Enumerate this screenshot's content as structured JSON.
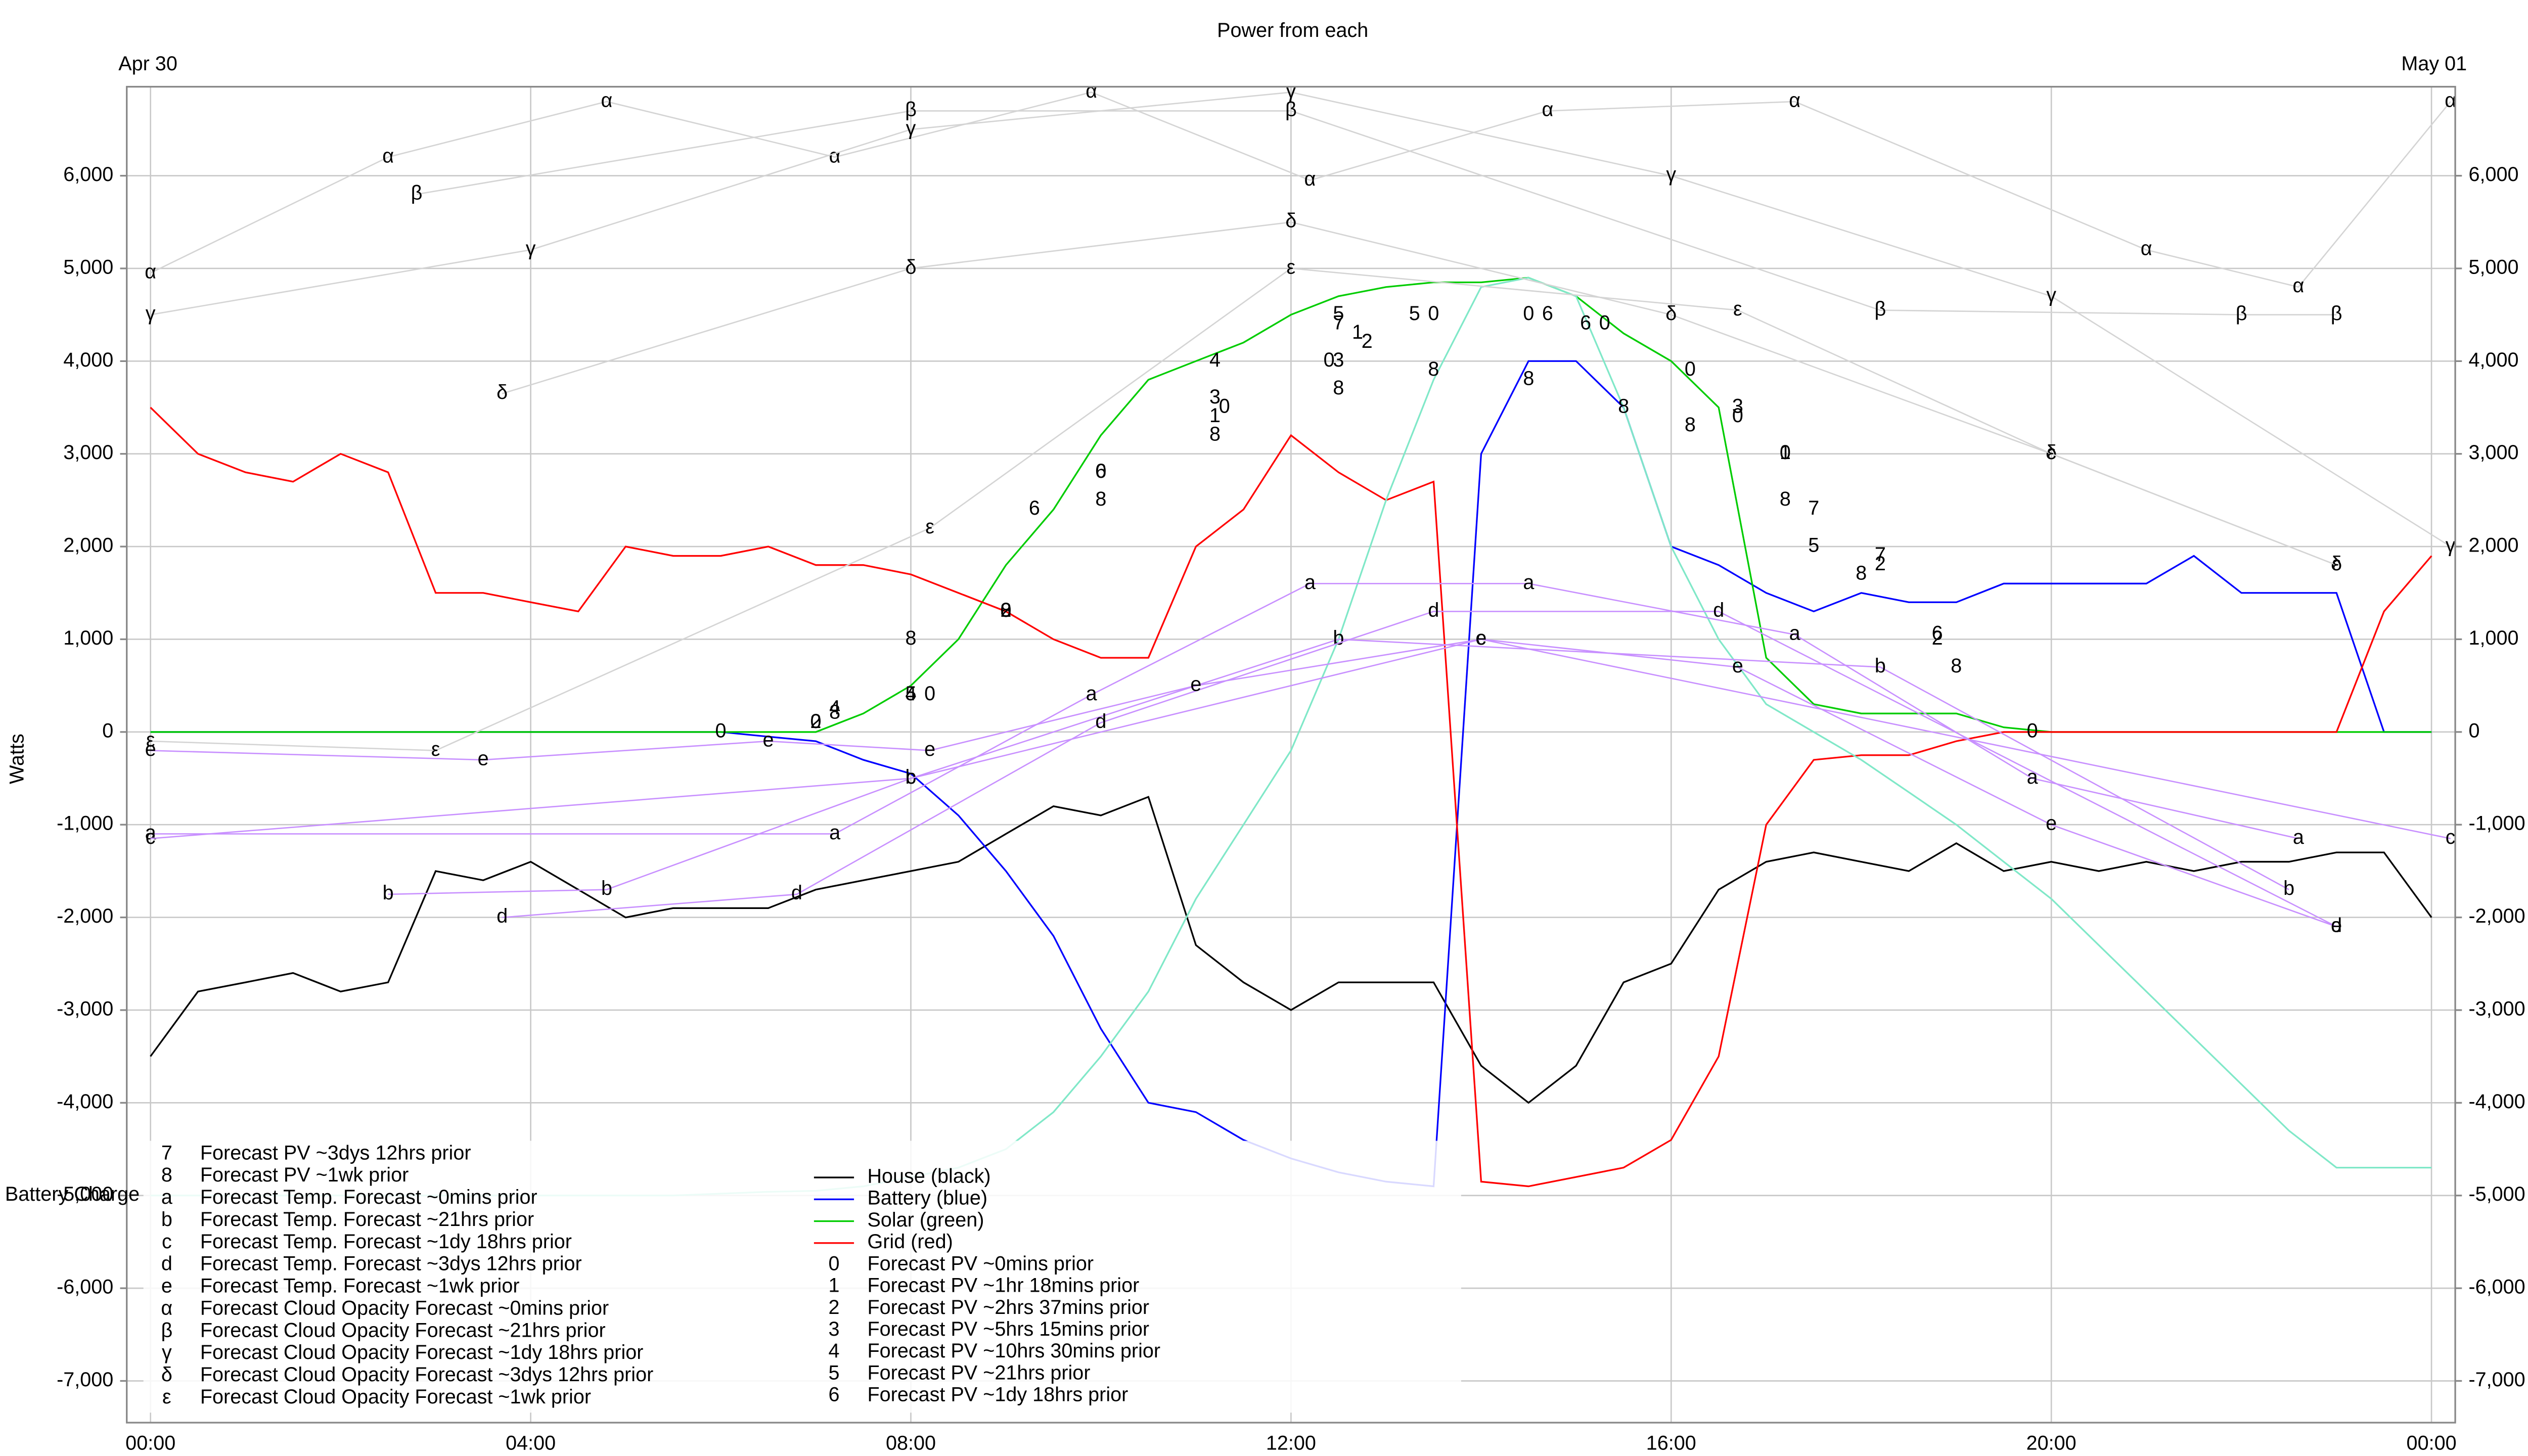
{
  "chart_data": {
    "type": "line",
    "title": "Power from each",
    "y_label": "Watts",
    "date_labels": [
      "Apr 30",
      "May 01"
    ],
    "grid": true,
    "xlim": [
      -0.25,
      24.25
    ],
    "ylim": [
      -7450,
      6960
    ],
    "xticks": [
      {
        "value": 0,
        "label": "00:00"
      },
      {
        "value": 4,
        "label": "04:00"
      },
      {
        "value": 8,
        "label": "08:00"
      },
      {
        "value": 12,
        "label": "12:00"
      },
      {
        "value": 16,
        "label": "16:00"
      },
      {
        "value": 20,
        "label": "20:00"
      },
      {
        "value": 24,
        "label": "00:00"
      }
    ],
    "yticks": [
      {
        "value": -7000,
        "label": "-7,000"
      },
      {
        "value": -6000,
        "label": "-6,000"
      },
      {
        "value": -5000,
        "label": "-5,000"
      },
      {
        "value": -4000,
        "label": "-4,000"
      },
      {
        "value": -3000,
        "label": "-3,000"
      },
      {
        "value": -2000,
        "label": "-2,000"
      },
      {
        "value": -1000,
        "label": "-1,000"
      },
      0,
      {
        "value": 1000,
        "label": "1,000"
      },
      {
        "value": 2000,
        "label": "2,000"
      },
      {
        "value": 3000,
        "label": "3,000"
      },
      {
        "value": 4000,
        "label": "4,000"
      },
      {
        "value": 5000,
        "label": "5,000"
      },
      {
        "value": 6000,
        "label": "6,000"
      }
    ],
    "x": [
      0,
      0.5,
      1,
      1.5,
      2,
      2.5,
      3,
      3.5,
      4,
      4.5,
      5,
      5.5,
      6,
      6.5,
      7,
      7.5,
      8,
      8.5,
      9,
      9.5,
      10,
      10.5,
      11,
      11.5,
      12,
      12.5,
      13,
      13.5,
      14,
      14.5,
      15,
      15.5,
      16,
      16.5,
      17,
      17.5,
      18,
      18.5,
      19,
      19.5,
      20,
      20.5,
      21,
      21.5,
      22,
      22.5,
      23,
      23.5,
      24
    ],
    "series": [
      {
        "name": "House (black)",
        "color": "#000000",
        "values": [
          -3500,
          -2800,
          -2700,
          -2600,
          -2800,
          -2700,
          -1500,
          -1600,
          -1400,
          -1700,
          -2000,
          -1900,
          -1900,
          -1900,
          -1700,
          -1600,
          -1500,
          -1400,
          -1100,
          -800,
          -900,
          -700,
          -2300,
          -2700,
          -3000,
          -2700,
          -2700,
          -2700,
          -3600,
          -4000,
          -3600,
          -2700,
          -2500,
          -1700,
          -1400,
          -1300,
          -1400,
          -1500,
          -1200,
          -1500,
          -1400,
          -1500,
          -1400,
          -1500,
          -1400,
          -1400,
          -1300,
          -1300,
          -2000
        ]
      },
      {
        "name": "Battery (blue)",
        "color": "#0000ff",
        "values": [
          0,
          0,
          0,
          0,
          0,
          0,
          0,
          0,
          0,
          0,
          0,
          0,
          0,
          -50,
          -100,
          -300,
          -450,
          -900,
          -1500,
          -2200,
          -3200,
          -4000,
          -4100,
          -4400,
          -4600,
          -4750,
          -4850,
          -4900,
          3000,
          4000,
          4000,
          3500,
          2000,
          1800,
          1500,
          1300,
          1500,
          1400,
          1400,
          1600,
          1600,
          1600,
          1600,
          1900,
          1500,
          1500,
          1500,
          0,
          0
        ]
      },
      {
        "name": "Solar (green)",
        "color": "#00cc00",
        "values": [
          0,
          0,
          0,
          0,
          0,
          0,
          0,
          0,
          0,
          0,
          0,
          0,
          0,
          0,
          0,
          200,
          500,
          1000,
          1800,
          2400,
          3200,
          3800,
          4000,
          4200,
          4500,
          4700,
          4800,
          4850,
          4850,
          4900,
          4700,
          4300,
          4000,
          3500,
          800,
          300,
          200,
          200,
          200,
          50,
          0,
          0,
          0,
          0,
          0,
          0,
          0,
          0,
          0
        ]
      },
      {
        "name": "Grid (red)",
        "color": "#ff0000",
        "values": [
          3500,
          3000,
          2800,
          2700,
          3000,
          2800,
          1500,
          1500,
          1400,
          1300,
          2000,
          1900,
          1900,
          2000,
          1800,
          1800,
          1700,
          1500,
          1300,
          1000,
          800,
          800,
          2000,
          2400,
          3200,
          2800,
          2500,
          2700,
          -4850,
          -4900,
          -4800,
          -4700,
          -4400,
          -3500,
          -1000,
          -300,
          -250,
          -250,
          -100,
          0,
          0,
          0,
          0,
          0,
          0,
          0,
          0,
          1300,
          1900
        ]
      },
      {
        "name": "Battery Charge",
        "color": "#80e8c8",
        "values": [
          -5000,
          -5000,
          -5000,
          -5000,
          -5000,
          -5000,
          -5000,
          -5000,
          -5000,
          -5000,
          -5000,
          -5000,
          -4980,
          -4960,
          -4950,
          -4900,
          -4800,
          -4700,
          -4500,
          -4100,
          -3500,
          -2800,
          -1800,
          -1000,
          -200,
          1000,
          2500,
          3800,
          4800,
          4900,
          4700,
          3500,
          2000,
          1000,
          300,
          0,
          -300,
          -650,
          -1000,
          -1400,
          -1800,
          -2300,
          -2800,
          -3300,
          -3800,
          -4300,
          -4700,
          -4700,
          -4700
        ]
      },
      {
        "name": "Forecast PV ~0mins prior",
        "marker": "0",
        "x": [
          6,
          7,
          8.2,
          9,
          10,
          11.3,
          12.4,
          13.5,
          14.5,
          15.3,
          16.2,
          16.7,
          17.2,
          19.8
        ],
        "values": [
          0,
          100,
          400,
          1300,
          2800,
          3500,
          4000,
          4500,
          4500,
          4400,
          3900,
          3400,
          3000,
          0
        ]
      },
      {
        "name": "Forecast PV ~1hr 18mins prior",
        "marker": "1",
        "x": [
          11.2,
          12.7,
          17.2
        ],
        "values": [
          3400,
          4300,
          3000
        ]
      },
      {
        "name": "Forecast PV ~2hrs 37mins prior",
        "marker": "2",
        "x": [
          7,
          9,
          12.8,
          18.2,
          18.8
        ],
        "values": [
          100,
          1300,
          4200,
          1800,
          1000
        ]
      },
      {
        "name": "Forecast PV ~5hrs 15mins prior",
        "marker": "3",
        "x": [
          11.2,
          12.5,
          16.7
        ],
        "values": [
          3600,
          4000,
          3500
        ]
      },
      {
        "name": "Forecast PV ~10hrs 30mins prior",
        "marker": "4",
        "x": [
          7.2,
          8,
          11.2
        ],
        "values": [
          250,
          400,
          4000
        ]
      },
      {
        "name": "Forecast PV ~21hrs prior",
        "marker": "5",
        "x": [
          8,
          12.5,
          13.3,
          17.5
        ],
        "values": [
          400,
          4500,
          4500,
          2000
        ]
      },
      {
        "name": "Forecast PV ~1dy 18hrs prior",
        "marker": "6",
        "x": [
          9.3,
          10,
          14.7,
          15.1,
          18.8
        ],
        "values": [
          2400,
          2800,
          4500,
          4400,
          1050
        ]
      },
      {
        "name": "Forecast PV ~3dys 12hrs prior",
        "marker": "7",
        "x": [
          12.5,
          17.5,
          18.2
        ],
        "values": [
          4400,
          2400,
          1900
        ]
      },
      {
        "name": "Forecast PV ~1wk prior",
        "marker": "8",
        "x": [
          7.2,
          8,
          9,
          10,
          11.2,
          12.5,
          13.5,
          14.5,
          15.5,
          16.2,
          17.2,
          18,
          19
        ],
        "values": [
          200,
          1000,
          1300,
          2500,
          3200,
          3700,
          3900,
          3800,
          3500,
          3300,
          2500,
          1700,
          700
        ]
      },
      {
        "name": "Forecast Temp. Forecast ~0mins prior",
        "marker": "a",
        "color": "#c890ff",
        "x": [
          0,
          7.2,
          9.9,
          12.2,
          14.5,
          17.3,
          19.8,
          22.6
        ],
        "values": [
          -1100,
          -1100,
          400,
          1600,
          1600,
          1050,
          -500,
          -1150
        ]
      },
      {
        "name": "Forecast Temp. Forecast ~21hrs prior",
        "marker": "b",
        "color": "#c890ff",
        "x": [
          2.5,
          4.8,
          8,
          12.5,
          18.2,
          22.5
        ],
        "values": [
          -1750,
          -1700,
          -500,
          1000,
          700,
          -1700
        ]
      },
      {
        "name": "Forecast Temp. Forecast ~1dy 18hrs prior",
        "marker": "c",
        "color": "#c890ff",
        "x": [
          0,
          8,
          14,
          24.2
        ],
        "values": [
          -1150,
          -500,
          1000,
          -1150
        ]
      },
      {
        "name": "Forecast Temp. Forecast ~3dys 12hrs prior",
        "marker": "d",
        "color": "#c890ff",
        "x": [
          3.7,
          6.8,
          10,
          13.5,
          16.5,
          23
        ],
        "values": [
          -2000,
          -1750,
          100,
          1300,
          1300,
          -2100
        ]
      },
      {
        "name": "Forecast Temp. Forecast ~1wk prior",
        "marker": "e",
        "color": "#c890ff",
        "x": [
          0,
          3.5,
          6.5,
          8.2,
          11,
          14,
          16.7,
          20,
          23
        ],
        "values": [
          -200,
          -300,
          -100,
          -200,
          500,
          1000,
          700,
          -1000,
          -2100
        ]
      },
      {
        "name": "Forecast Cloud Opacity Forecast ~0mins prior",
        "marker": "α",
        "color": "#d4d4d4",
        "x": [
          0,
          2.5,
          4.8,
          7.2,
          9.9,
          12.2,
          14.7,
          17.3,
          21,
          22.6,
          24.2
        ],
        "values": [
          4950,
          6200,
          6800,
          6200,
          6900,
          5950,
          6700,
          6800,
          5200,
          4800,
          6800
        ]
      },
      {
        "name": "Forecast Cloud Opacity Forecast ~21hrs prior",
        "marker": "β",
        "color": "#d4d4d4",
        "x": [
          2.8,
          8,
          12,
          18.2,
          22,
          23
        ],
        "values": [
          5800,
          6700,
          6700,
          4550,
          4500,
          4500
        ]
      },
      {
        "name": "Forecast Cloud Opacity Forecast ~1dy 18hrs prior",
        "marker": "γ",
        "color": "#d4d4d4",
        "x": [
          0,
          4,
          8,
          12,
          16,
          20,
          24.2
        ],
        "values": [
          4500,
          5200,
          6500,
          6900,
          6000,
          4700,
          2000
        ]
      },
      {
        "name": "Forecast Cloud Opacity Forecast ~3dys 12hrs prior",
        "marker": "δ",
        "color": "#d4d4d4",
        "x": [
          3.7,
          8,
          12,
          16,
          20,
          23
        ],
        "values": [
          3650,
          5000,
          5500,
          4500,
          3000,
          1800
        ]
      },
      {
        "name": "Forecast Cloud Opacity Forecast ~1wk prior",
        "marker": "ε",
        "color": "#d4d4d4",
        "x": [
          0,
          3,
          8.2,
          12,
          16.7,
          20,
          23
        ],
        "values": [
          -100,
          -200,
          2200,
          5000,
          4550,
          3000,
          1800
        ]
      }
    ]
  }
}
